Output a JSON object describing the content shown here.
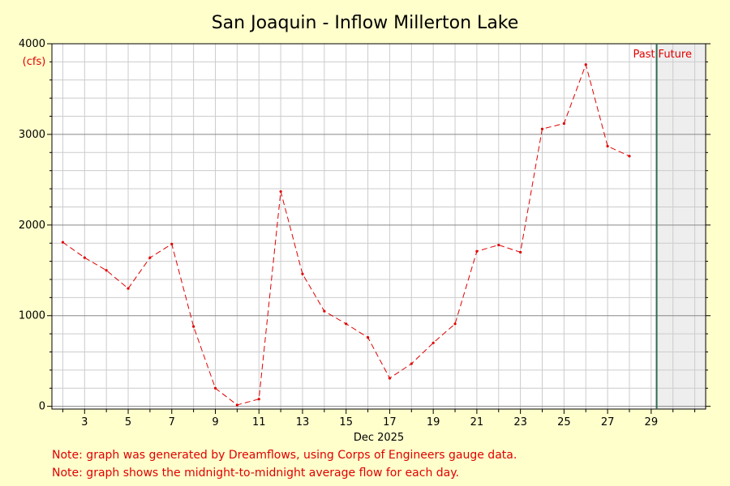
{
  "chart_data": {
    "type": "line",
    "title": "San Joaquin - Inflow Millerton Lake",
    "xlabel": "Dec 2025",
    "ylabel": "(cfs)",
    "x_ticks": [
      "3",
      "5",
      "7",
      "9",
      "11",
      "13",
      "15",
      "17",
      "19",
      "21",
      "23",
      "25",
      "27",
      "29"
    ],
    "y_ticks": [
      "0",
      "1000",
      "2000",
      "3000",
      "4000"
    ],
    "xlim": [
      1.5,
      31.5
    ],
    "ylim": [
      -30,
      4000
    ],
    "grid": true,
    "series": [
      {
        "color": "#e00000",
        "style": "dashed",
        "x": [
          2,
          3,
          4,
          5,
          6,
          7,
          8,
          9,
          10,
          11,
          12,
          13,
          14,
          15,
          16,
          17,
          18,
          19,
          20,
          21,
          22,
          23,
          24,
          25,
          26,
          27,
          28
        ],
        "y": [
          1810,
          1640,
          1500,
          1300,
          1640,
          1790,
          880,
          200,
          15,
          80,
          2370,
          1460,
          1050,
          910,
          760,
          310,
          470,
          700,
          910,
          1710,
          1780,
          1700,
          3060,
          3120,
          3770,
          2870,
          2760
        ]
      }
    ],
    "past_future_divider": 29.25,
    "past_label": "Past",
    "future_label": "Future",
    "colors": {
      "background": "#ffffcc",
      "plot_bg": "#ffffff",
      "future_bg": "#eeeeee",
      "divider": "#2e6b4f",
      "line": "#e00000"
    }
  },
  "notes": [
    "Note: graph was generated by Dreamflows, using Corps of Engineers gauge data.",
    "Note: graph shows the midnight-to-midnight average flow for each day."
  ]
}
